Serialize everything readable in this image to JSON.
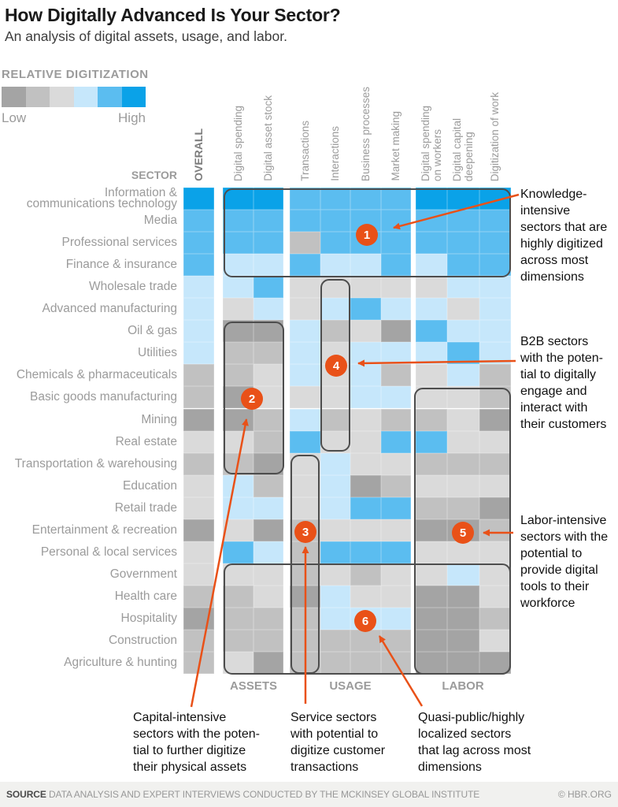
{
  "title": "How Digitally Advanced Is Your Sector?",
  "subtitle": "An analysis of digital assets, usage, and labor.",
  "legend": {
    "label": "RELATIVE DIGITIZATION",
    "low": "Low",
    "high": "High"
  },
  "sector_label": "SECTOR",
  "chart_data": {
    "type": "heatmap",
    "title": "How Digitally Advanced Is Your Sector?",
    "scale": "relative digitization, 1 = low, 6 = high",
    "palette": [
      "#a4a4a4",
      "#c1c1c1",
      "#dadada",
      "#c6e7fb",
      "#5bbdf0",
      "#0aa2e8"
    ],
    "column_groups": [
      {
        "label": "",
        "columns": [
          "OVERALL"
        ]
      },
      {
        "label": "ASSETS",
        "columns": [
          "Digital spending",
          "Digital asset stock"
        ]
      },
      {
        "label": "USAGE",
        "columns": [
          "Transactions",
          "Interactions",
          "Business processes",
          "Market making"
        ]
      },
      {
        "label": "LABOR",
        "columns": [
          "Digital spending\non workers",
          "Digital capital\ndeepening",
          "Digitization of work"
        ]
      }
    ],
    "rows": [
      {
        "sector": "Information &\ncommunications technology",
        "values": [
          6,
          6,
          6,
          5,
          5,
          5,
          5,
          6,
          6,
          6
        ]
      },
      {
        "sector": "Media",
        "values": [
          5,
          5,
          5,
          5,
          5,
          5,
          5,
          5,
          5,
          5
        ]
      },
      {
        "sector": "Professional services",
        "values": [
          5,
          5,
          5,
          2,
          5,
          5,
          5,
          5,
          5,
          5
        ]
      },
      {
        "sector": "Finance & insurance",
        "values": [
          5,
          4,
          4,
          5,
          4,
          4,
          5,
          4,
          5,
          5
        ]
      },
      {
        "sector": "Wholesale trade",
        "values": [
          4,
          4,
          5,
          3,
          3,
          3,
          3,
          3,
          4,
          4
        ]
      },
      {
        "sector": "Advanced manufacturing",
        "values": [
          4,
          3,
          4,
          3,
          4,
          5,
          4,
          4,
          3,
          4
        ]
      },
      {
        "sector": "Oil & gas",
        "values": [
          4,
          1,
          1,
          4,
          2,
          3,
          1,
          5,
          4,
          4
        ]
      },
      {
        "sector": "Utilities",
        "values": [
          4,
          2,
          2,
          4,
          3,
          4,
          4,
          4,
          5,
          4
        ]
      },
      {
        "sector": "Chemicals & pharmaceuticals",
        "values": [
          2,
          2,
          3,
          4,
          3,
          4,
          2,
          3,
          4,
          2
        ]
      },
      {
        "sector": "Basic goods manufacturing",
        "values": [
          2,
          1,
          3,
          3,
          3,
          4,
          4,
          3,
          3,
          2
        ]
      },
      {
        "sector": "Mining",
        "values": [
          1,
          1,
          2,
          4,
          2,
          3,
          2,
          2,
          3,
          1
        ]
      },
      {
        "sector": "Real estate",
        "values": [
          3,
          3,
          2,
          5,
          3,
          3,
          5,
          5,
          3,
          3
        ]
      },
      {
        "sector": "Transportation & warehousing",
        "values": [
          2,
          2,
          1,
          3,
          4,
          3,
          3,
          2,
          2,
          2
        ]
      },
      {
        "sector": "Education",
        "values": [
          3,
          4,
          2,
          3,
          4,
          1,
          2,
          3,
          3,
          3
        ]
      },
      {
        "sector": "Retail trade",
        "values": [
          3,
          4,
          4,
          3,
          4,
          5,
          5,
          2,
          2,
          1
        ]
      },
      {
        "sector": "Entertainment & recreation",
        "values": [
          1,
          3,
          1,
          2,
          3,
          3,
          3,
          1,
          1,
          2
        ]
      },
      {
        "sector": "Personal & local services",
        "values": [
          3,
          5,
          4,
          2,
          5,
          5,
          5,
          3,
          3,
          3
        ]
      },
      {
        "sector": "Government",
        "values": [
          3,
          3,
          3,
          2,
          3,
          2,
          3,
          3,
          4,
          3
        ]
      },
      {
        "sector": "Health care",
        "values": [
          2,
          2,
          3,
          1,
          4,
          3,
          3,
          1,
          1,
          3
        ]
      },
      {
        "sector": "Hospitality",
        "values": [
          1,
          2,
          2,
          2,
          4,
          4,
          4,
          1,
          1,
          2
        ]
      },
      {
        "sector": "Construction",
        "values": [
          2,
          2,
          2,
          2,
          2,
          2,
          2,
          1,
          1,
          3
        ]
      },
      {
        "sector": "Agriculture & hunting",
        "values": [
          2,
          3,
          1,
          2,
          2,
          2,
          2,
          1,
          1,
          1
        ]
      }
    ]
  },
  "annotations": [
    {
      "number": "1",
      "text": "Knowledge-\nintensive\nsectors that are\nhighly digitized\nacross most\ndimensions"
    },
    {
      "number": "2",
      "text": "Capital-intensive\nsectors with the poten-\ntial to further digitize\ntheir physical assets"
    },
    {
      "number": "3",
      "text": "Service sectors\nwith potential to\ndigitize customer\ntransactions"
    },
    {
      "number": "4",
      "text": "B2B sectors\nwith the poten-\ntial to digitally\nengage and\ninteract with\ntheir customers"
    },
    {
      "number": "5",
      "text": "Labor-intensive\nsectors with the\npotential to\nprovide digital\ntools to their\nworkforce"
    },
    {
      "number": "6",
      "text": "Quasi-public/highly\nlocalized sectors\nthat lag across most\ndimensions"
    }
  ],
  "footer": {
    "source_label": "SOURCE",
    "source_text": " DATA ANALYSIS AND EXPERT INTERVIEWS CONDUCTED BY THE MCKINSEY GLOBAL INSTITUTE",
    "credit": "© HBR.ORG"
  },
  "accent_color": "#E95118"
}
